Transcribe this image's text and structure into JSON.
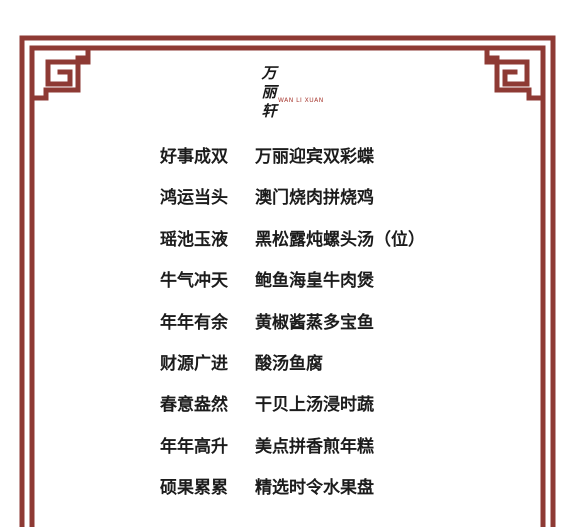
{
  "logo": {
    "chinese_chars": [
      "万",
      "丽",
      "轩"
    ],
    "english": "WAN LI XUAN"
  },
  "menu": {
    "items": [
      {
        "title": "好事成双",
        "dish": "万丽迎宾双彩蝶"
      },
      {
        "title": "鸿运当头",
        "dish": "澳门烧肉拼烧鸡"
      },
      {
        "title": "瑶池玉液",
        "dish": "黑松露炖螺头汤（位）"
      },
      {
        "title": "牛气冲天",
        "dish": "鲍鱼海皇牛肉煲"
      },
      {
        "title": "年年有余",
        "dish": "黄椒酱蒸多宝鱼"
      },
      {
        "title": "财源广进",
        "dish": "酸汤鱼腐"
      },
      {
        "title": "春意盎然",
        "dish": "干贝上汤浸时蔬"
      },
      {
        "title": "年年高升",
        "dish": "美点拼香煎年糕"
      },
      {
        "title": "硕果累累",
        "dish": "精选时令水果盘"
      }
    ]
  },
  "colors": {
    "frame": "#8e3a34",
    "text": "#1c1c1c",
    "logo_accent": "#a83a32"
  }
}
